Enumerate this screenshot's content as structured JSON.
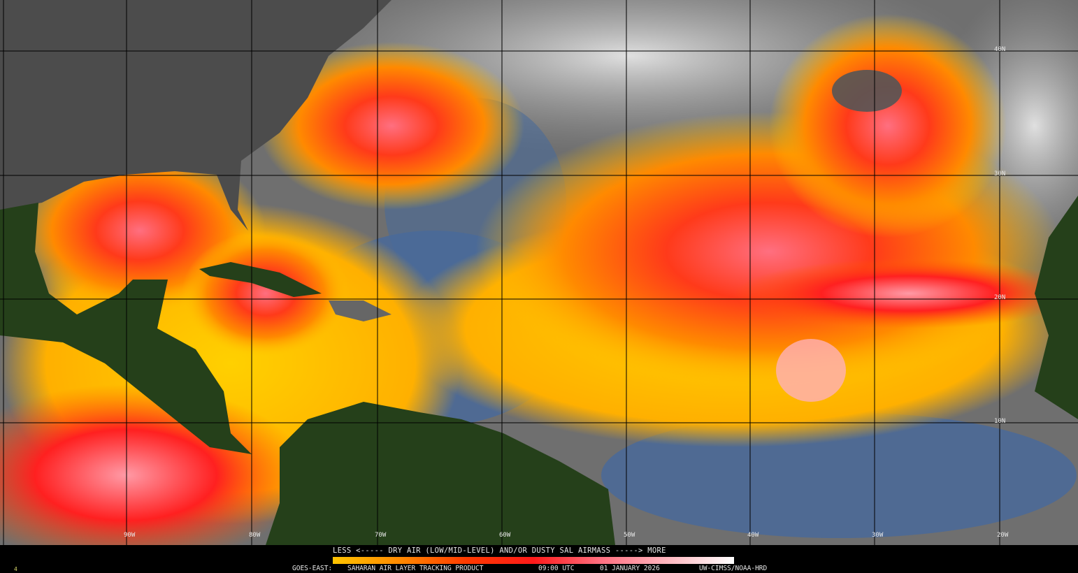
{
  "product": {
    "satellite": "GOES-EAST:",
    "name": "SAHARAN AIR LAYER TRACKING PRODUCT",
    "time": "09:00 UTC",
    "date": "01 JANUARY 2026",
    "credit": "UW-CIMSS/NOAA-HRD",
    "frame_marker": "4"
  },
  "legend": {
    "title": "LESS <----- DRY AIR (LOW/MID-LEVEL) AND/OR DUSTY SAL AIRMASS -----> MORE",
    "colors": [
      "#ffc400",
      "#ff8a00",
      "#ff3a00",
      "#ff1a1a",
      "#ff6f80",
      "#ffb6bf",
      "#ffffff"
    ]
  },
  "map": {
    "longitude_labels": [
      "90W",
      "80W",
      "70W",
      "60W",
      "50W",
      "40W",
      "30W",
      "20W"
    ],
    "latitude_labels": [
      "40N",
      "30N",
      "20N",
      "10N"
    ],
    "colors": {
      "land": "#25401a",
      "cloud": "#d0d0d0",
      "clear_moist": "#4a6a9a",
      "background": "#6f6f6f",
      "grid": "#000000"
    }
  }
}
